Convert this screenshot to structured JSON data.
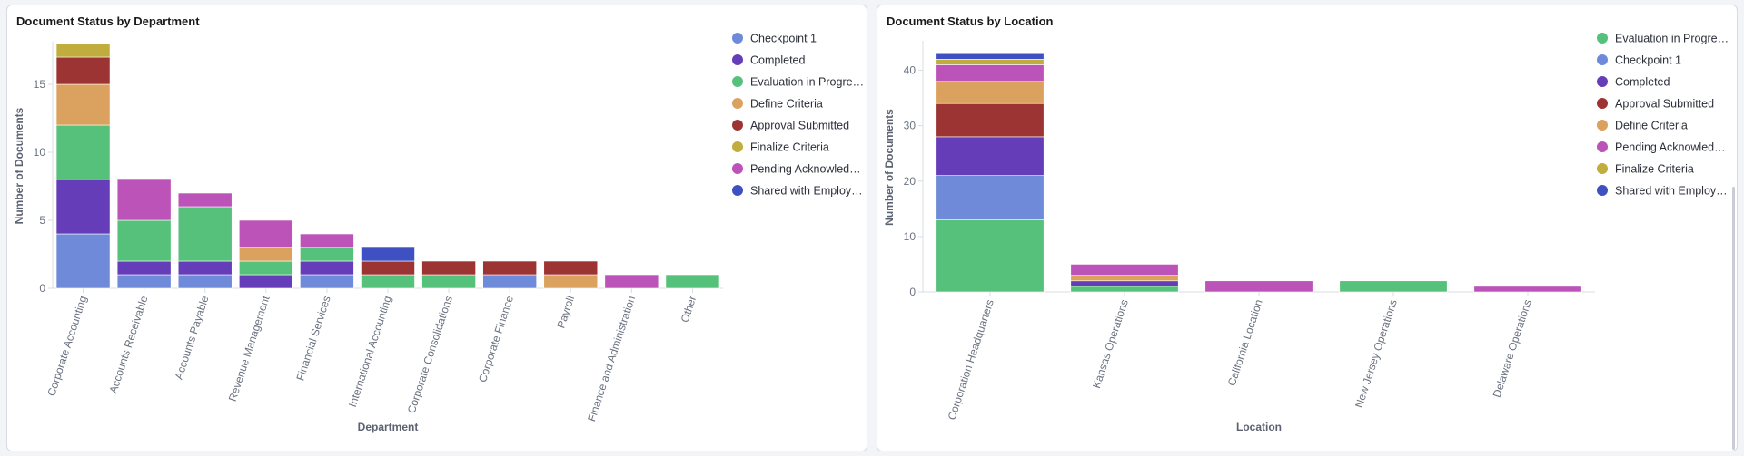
{
  "colors": {
    "Checkpoint 1": "#6e8ad8",
    "Completed": "#663db8",
    "Evaluation in Progress": "#56c17a",
    "Define Criteria": "#dba15e",
    "Approval Submitted": "#9c3434",
    "Finalize Criteria": "#c0ad3e",
    "Pending Acknowledgement": "#bc53b9",
    "Shared with Employee": "#3f50c2"
  },
  "chart_data": [
    {
      "type": "bar",
      "stacked": true,
      "title": "Document Status by Department",
      "xlabel": "Department",
      "ylabel": "Number of Documents",
      "ylim": [
        0,
        18
      ],
      "yticks": [
        0,
        5,
        10,
        15
      ],
      "legend_position": "right",
      "categories": [
        "Corporate Accounting",
        "Accounts Receivable",
        "Accounts Payable",
        "Revenue Management",
        "Financial Services",
        "International Accounting",
        "Corporate Consolidations",
        "Corporate Finance",
        "Payroll",
        "Finance and Administration",
        "Other"
      ],
      "series": [
        {
          "key": "Checkpoint 1",
          "legend": "Checkpoint 1",
          "values": [
            4,
            1,
            1,
            0,
            1,
            0,
            0,
            1,
            0,
            0,
            0
          ]
        },
        {
          "key": "Completed",
          "legend": "Completed",
          "values": [
            4,
            1,
            1,
            1,
            1,
            0,
            0,
            0,
            0,
            0,
            0
          ]
        },
        {
          "key": "Evaluation in Progress",
          "legend": "Evaluation in Progre…",
          "values": [
            4,
            3,
            4,
            1,
            1,
            1,
            1,
            0,
            0,
            0,
            1
          ]
        },
        {
          "key": "Define Criteria",
          "legend": "Define Criteria",
          "values": [
            3,
            0,
            0,
            1,
            0,
            0,
            0,
            0,
            1,
            0,
            0
          ]
        },
        {
          "key": "Approval Submitted",
          "legend": "Approval Submitted",
          "values": [
            2,
            0,
            0,
            0,
            0,
            1,
            1,
            1,
            1,
            0,
            0
          ]
        },
        {
          "key": "Finalize Criteria",
          "legend": "Finalize Criteria",
          "values": [
            1,
            0,
            0,
            0,
            0,
            0,
            0,
            0,
            0,
            0,
            0
          ]
        },
        {
          "key": "Pending Acknowledgement",
          "legend": "Pending Acknowled…",
          "values": [
            0,
            3,
            1,
            2,
            1,
            0,
            0,
            0,
            0,
            1,
            0
          ]
        },
        {
          "key": "Shared with Employee",
          "legend": "Shared with Employ…",
          "values": [
            0,
            0,
            0,
            0,
            0,
            1,
            0,
            0,
            0,
            0,
            0
          ]
        }
      ]
    },
    {
      "type": "bar",
      "stacked": true,
      "title": "Document Status by Location",
      "xlabel": "Location",
      "ylabel": "Number of Documents",
      "ylim": [
        0,
        45
      ],
      "yticks": [
        0,
        10,
        20,
        30,
        40
      ],
      "legend_position": "right",
      "categories": [
        "Corporation Headquarters",
        "Kansas Operations",
        "California Location",
        "New Jersey Operations",
        "Delaware Operations"
      ],
      "series": [
        {
          "key": "Evaluation in Progress",
          "legend": "Evaluation in Progre…",
          "values": [
            13,
            1,
            0,
            2,
            0
          ]
        },
        {
          "key": "Checkpoint 1",
          "legend": "Checkpoint 1",
          "values": [
            8,
            0,
            0,
            0,
            0
          ]
        },
        {
          "key": "Completed",
          "legend": "Completed",
          "values": [
            7,
            1,
            0,
            0,
            0
          ]
        },
        {
          "key": "Approval Submitted",
          "legend": "Approval Submitted",
          "values": [
            6,
            0,
            0,
            0,
            0
          ]
        },
        {
          "key": "Define Criteria",
          "legend": "Define Criteria",
          "values": [
            4,
            1,
            0,
            0,
            0
          ]
        },
        {
          "key": "Pending Acknowledgement",
          "legend": "Pending Acknowled…",
          "values": [
            3,
            2,
            2,
            0,
            1
          ]
        },
        {
          "key": "Finalize Criteria",
          "legend": "Finalize Criteria",
          "values": [
            1,
            0,
            0,
            0,
            0
          ]
        },
        {
          "key": "Shared with Employee",
          "legend": "Shared with Employ…",
          "values": [
            1,
            0,
            0,
            0,
            0
          ]
        }
      ]
    }
  ]
}
